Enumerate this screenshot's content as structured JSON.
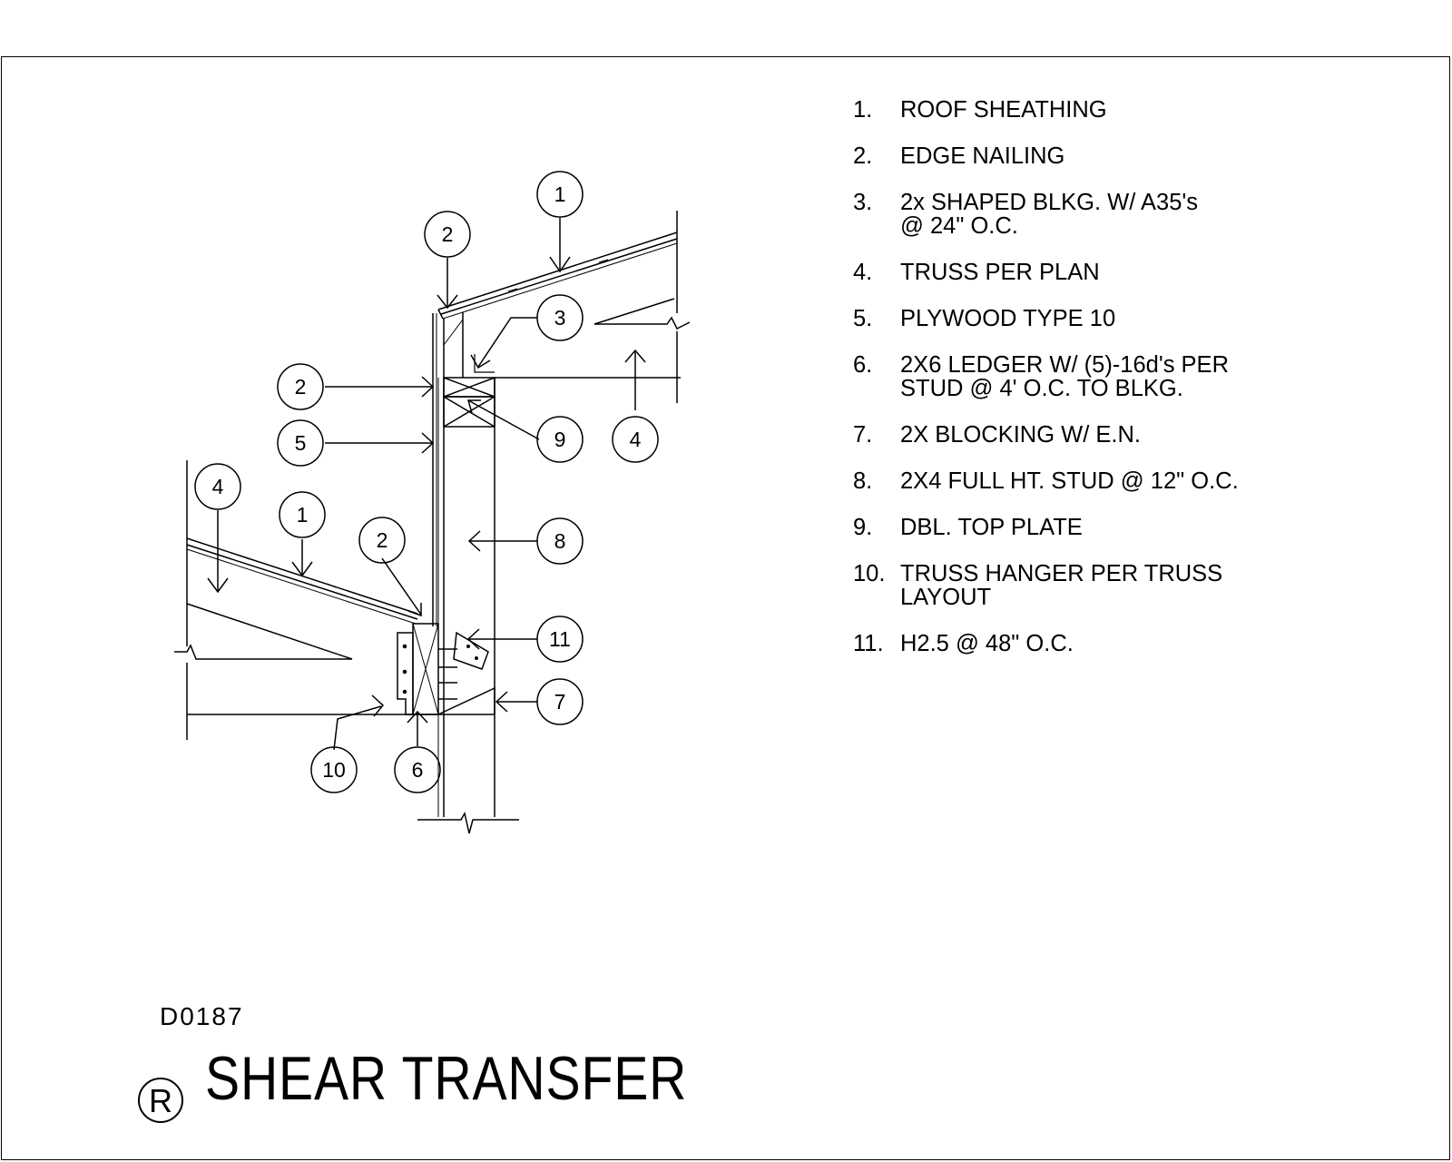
{
  "title": "SHEAR TRANSFER",
  "detail_code": "D0187",
  "revision_mark": "R",
  "notes": [
    {
      "num": "1.",
      "text": "ROOF SHEATHING"
    },
    {
      "num": "2.",
      "text": "EDGE NAILING"
    },
    {
      "num": "3.",
      "text": "2x SHAPED BLKG. W/ A35's\n@ 24\" O.C."
    },
    {
      "num": "4.",
      "text": "TRUSS PER PLAN"
    },
    {
      "num": "5.",
      "text": "PLYWOOD TYPE 10"
    },
    {
      "num": "6.",
      "text": "2X6 LEDGER W/ (5)-16d's PER\nSTUD @ 4' O.C. TO BLKG."
    },
    {
      "num": "7.",
      "text": "2X BLOCKING W/ E.N."
    },
    {
      "num": "8.",
      "text": "2X4 FULL HT. STUD @ 12\" O.C."
    },
    {
      "num": "9.",
      "text": "DBL. TOP PLATE"
    },
    {
      "num": "10.",
      "text": "TRUSS HANGER PER TRUSS\nLAYOUT"
    },
    {
      "num": "11.",
      "text": "H2.5 @ 48\" O.C."
    }
  ],
  "callouts": {
    "upper_sheathing": "1",
    "upper_edge_nailing": "2",
    "shaped_blocking": "3",
    "top_plate_edge_nailing": "2",
    "plywood": "5",
    "top_plate": "9",
    "upper_truss": "4",
    "lower_truss": "4",
    "lower_sheathing": "1",
    "lower_edge_nailing": "2",
    "stud": "8",
    "hurricane_tie": "11",
    "blocking": "7",
    "truss_hanger": "10",
    "ledger": "6"
  }
}
